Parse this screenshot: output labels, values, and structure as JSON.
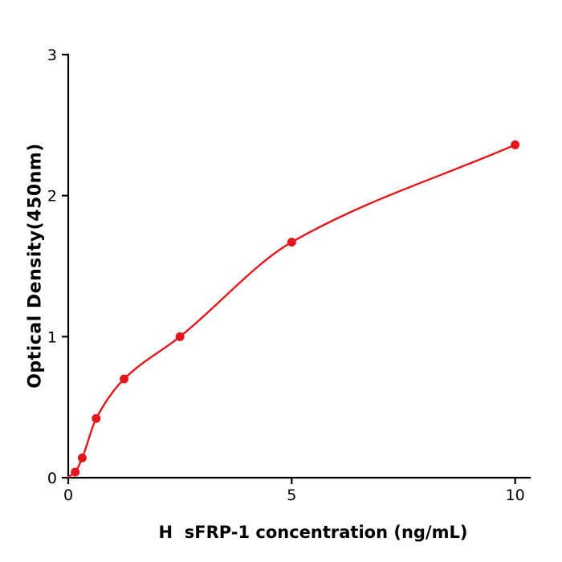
{
  "chart_data": {
    "type": "scatter",
    "title": "",
    "xlabel": "H  sFRP-1 concentration (ng/mL)",
    "ylabel": "Optical Density(450nm)",
    "x": [
      0.156,
      0.313,
      0.625,
      1.25,
      2.5,
      5,
      10
    ],
    "y": [
      0.04,
      0.14,
      0.42,
      0.7,
      1.0,
      1.67,
      2.36
    ],
    "curve_start": [
      0,
      0.005
    ],
    "xlim": [
      0,
      10.15
    ],
    "ylim": [
      0,
      3
    ],
    "x_ticks": [
      0,
      5,
      10
    ],
    "x_tick_labels": [
      "0",
      "5",
      "10"
    ],
    "y_ticks": [
      0,
      1,
      2,
      3
    ],
    "y_tick_labels": [
      "0",
      "1",
      "2",
      "3"
    ],
    "point_color": "#e3161b",
    "line_color": "#e3161b",
    "axis_color": "#000000",
    "grid": false,
    "legend": "none"
  }
}
